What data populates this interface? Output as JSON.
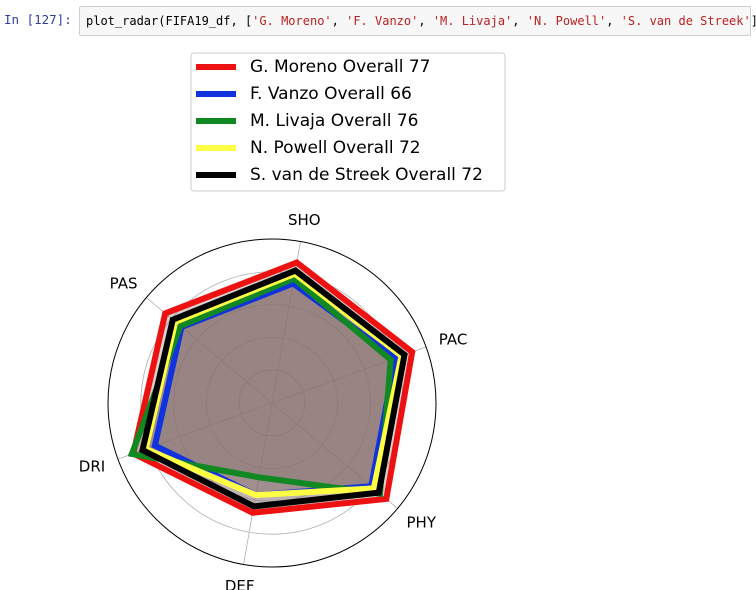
{
  "cell": {
    "prompt": "In  [127]:",
    "code_prefix": "plot_radar(FIFA19_df, [",
    "code_args": [
      "'G. Moreno'",
      "'F. Vanzo'",
      "'M. Livaja'",
      "'N. Powell'",
      "'S. van de Streek'"
    ],
    "code_suffix": "]);"
  },
  "chart_data": {
    "type": "radar",
    "title": "",
    "axes": [
      "PAC",
      "SHO",
      "PAS",
      "DRI",
      "DEF",
      "PHY"
    ],
    "range": [
      0,
      100
    ],
    "grid": true,
    "legend_position": "top",
    "fill_color": "#8a6f6f",
    "series": [
      {
        "name": "G. Moreno Overall 77",
        "color": "#ee1111",
        "values": [
          91,
          87,
          85,
          90,
          68,
          91
        ]
      },
      {
        "name": "F. Vanzo Overall 66",
        "color": "#1133dd",
        "values": [
          80,
          74,
          72,
          76,
          57,
          79
        ]
      },
      {
        "name": "M. Livaja Overall 76",
        "color": "#118822",
        "values": [
          77,
          77,
          73,
          91,
          46,
          86
        ]
      },
      {
        "name": "N. Powell Overall 72",
        "color": "#ffff44",
        "values": [
          84,
          80,
          77,
          82,
          57,
          81
        ]
      },
      {
        "name": "S. van de Streek Overall 72",
        "color": "#000000",
        "values": [
          86,
          82,
          79,
          84,
          64,
          85
        ]
      }
    ]
  }
}
